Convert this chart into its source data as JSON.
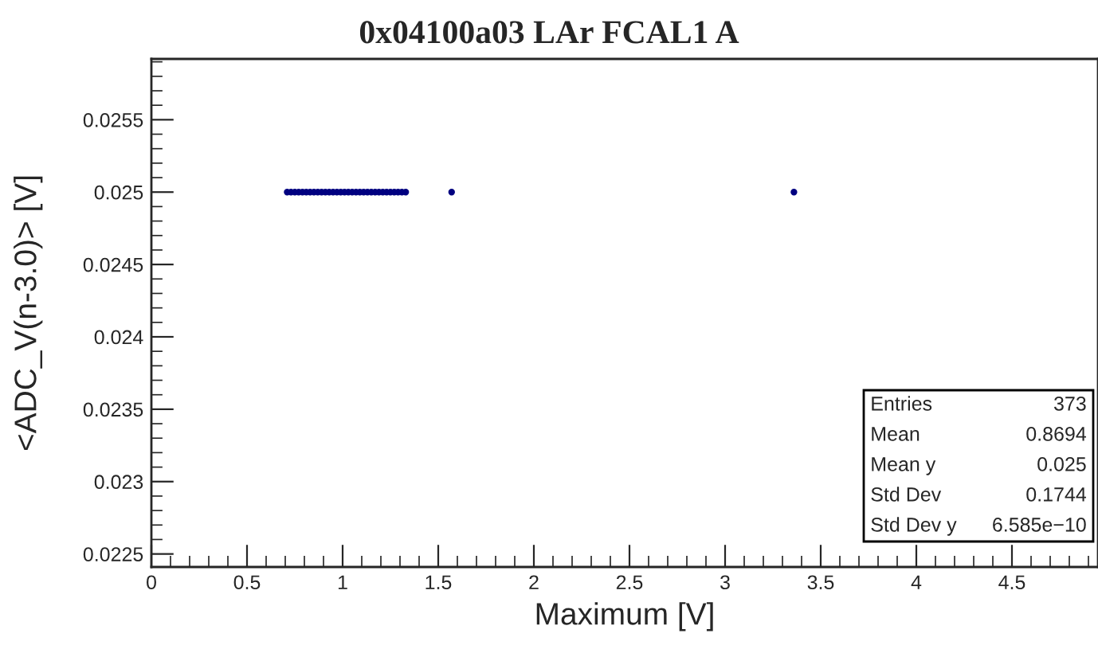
{
  "chart_data": {
    "type": "scatter",
    "title": "0x04100a03 LAr FCAL1 A",
    "xlabel": "Maximum [V]",
    "ylabel": "<ADC_V(n-3.0)> [V]",
    "x": [
      0.71,
      0.73,
      0.75,
      0.77,
      0.79,
      0.81,
      0.83,
      0.85,
      0.87,
      0.89,
      0.91,
      0.93,
      0.95,
      0.97,
      0.99,
      1.01,
      1.03,
      1.05,
      1.07,
      1.09,
      1.11,
      1.13,
      1.15,
      1.17,
      1.19,
      1.21,
      1.23,
      1.25,
      1.27,
      1.29,
      1.31,
      1.33,
      1.57,
      3.36
    ],
    "series": [
      {
        "color": "#000080",
        "values": [
          0.025,
          0.025,
          0.025,
          0.025,
          0.025,
          0.025,
          0.025,
          0.025,
          0.025,
          0.025,
          0.025,
          0.025,
          0.025,
          0.025,
          0.025,
          0.025,
          0.025,
          0.025,
          0.025,
          0.025,
          0.025,
          0.025,
          0.025,
          0.025,
          0.025,
          0.025,
          0.025,
          0.025,
          0.025,
          0.025,
          0.025,
          0.025,
          0.025,
          0.025
        ],
        "xerrors": [
          0.01,
          0.01,
          0.01,
          0.01,
          0.01,
          0.01,
          0.01,
          0.01,
          0.01,
          0.01,
          0.01,
          0.01,
          0.01,
          0.01,
          0.01,
          0.01,
          0.01,
          0.01,
          0.01,
          0.01,
          0.01,
          0.01,
          0.01,
          0.01,
          0.01,
          0.01,
          0.01,
          0.01,
          0.01,
          0.01,
          0.01,
          0.01,
          0.01,
          0.01
        ]
      }
    ],
    "marker": "circle",
    "xlim": [
      0,
      4.95
    ],
    "xticks": [
      0,
      0.5,
      1,
      1.5,
      2,
      2.5,
      3,
      3.5,
      4,
      4.5
    ],
    "ylim": [
      0.02241,
      0.02592
    ],
    "yticks": [
      0.0225,
      0.023,
      0.0235,
      0.024,
      0.0245,
      0.025,
      0.0255
    ],
    "grid": false,
    "annotations": [
      "Entries",
      "373",
      "Mean",
      "0.8694",
      "Mean y",
      "0.025",
      "Std Dev",
      "0.1744",
      "Std Dev y",
      "6.585e−10"
    ]
  }
}
